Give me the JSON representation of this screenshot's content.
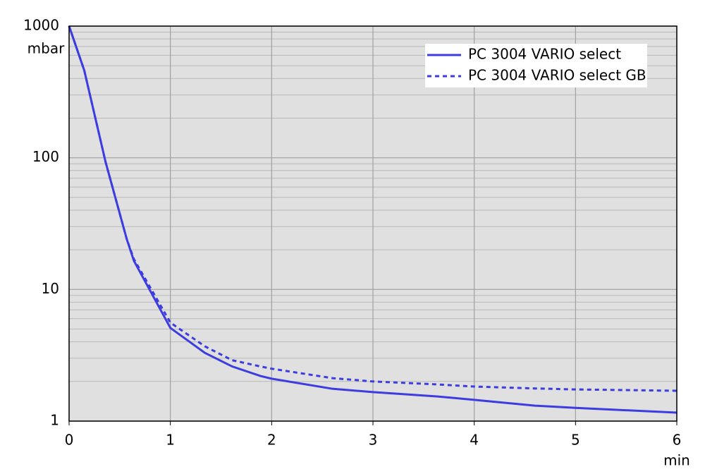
{
  "chart_data": {
    "type": "line",
    "y_label": "mbar",
    "x_label": "min",
    "x": [
      0,
      0.15,
      0.36,
      0.57,
      0.64,
      1,
      1.34,
      1.61,
      1.89,
      2,
      2.6,
      3,
      3.63,
      4,
      4.6,
      5,
      6
    ],
    "series": [
      {
        "name": "PC 3004 VARIO select",
        "color": "#3c3ce0",
        "dash": false,
        "values": [
          1000,
          460,
          93,
          24,
          16.5,
          5.1,
          3.3,
          2.6,
          2.2,
          2.1,
          1.76,
          1.66,
          1.54,
          1.45,
          1.31,
          1.26,
          1.16
        ]
      },
      {
        "name": "PC 3004 VARIO select GB",
        "color": "#3c3ce0",
        "dash": true,
        "values": [
          1000,
          460,
          93,
          24,
          17,
          5.6,
          3.7,
          2.9,
          2.6,
          2.5,
          2.12,
          2.0,
          1.9,
          1.83,
          1.77,
          1.74,
          1.7
        ]
      }
    ],
    "xlim": [
      0,
      6
    ],
    "xticks": [
      0,
      1,
      2,
      3,
      4,
      5,
      6
    ],
    "ylim": [
      1,
      1000
    ],
    "yticks": [
      1,
      10,
      100,
      1000
    ],
    "log_y": true,
    "grid": true,
    "minor_grid": true,
    "legend": "upper right"
  }
}
